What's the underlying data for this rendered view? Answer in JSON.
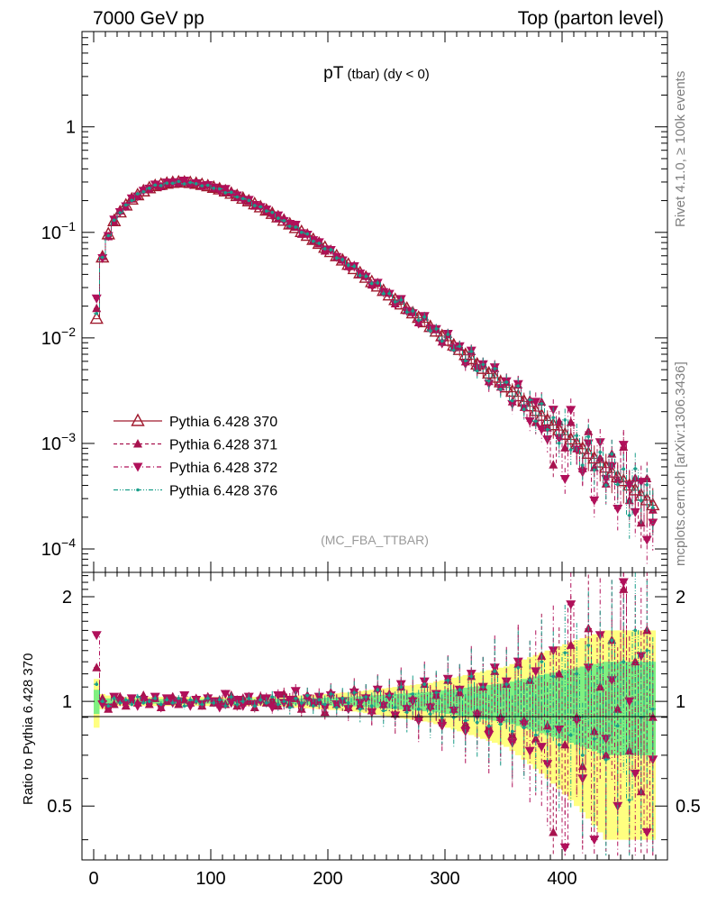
{
  "header": {
    "left": "7000 GeV pp",
    "right": "Top (parton level)"
  },
  "side_labels": {
    "rivet": "Rivet 4.1.0, ≥ 100k events",
    "mcplots": "mcplots.cern.ch [arXiv:1306.3436]"
  },
  "title_main": "pT",
  "title_sub": " (tbar) (dy < 0)",
  "analysis": "(MC_FBA_TTBAR)",
  "ratio_ylabel": "Ratio to Pythia 6.428 370",
  "colors": {
    "s370": "#a01a2e",
    "s371": "#a8124e",
    "s372": "#b0105a",
    "s376": "#1a9e8a",
    "band_yellow": "#ffff80",
    "band_green": "#80f080"
  },
  "chart_data": {
    "type": "line",
    "title": "pT (tbar) (dy < 0)",
    "xlabel": "",
    "ylabel": "",
    "xlim": [
      -10,
      490
    ],
    "main_ylim": [
      6e-05,
      8
    ],
    "main_yscale": "log",
    "ratio_ylim": [
      0.35,
      2.35
    ],
    "ratio_yscale": "log",
    "x_ticks": [
      "0",
      "100",
      "200",
      "300",
      "400"
    ],
    "main_y_ticks": [
      {
        "value": 1,
        "label": "1"
      },
      {
        "value": 0.1,
        "label": "10",
        "exp": "−1"
      },
      {
        "value": 0.01,
        "label": "10",
        "exp": "−2"
      },
      {
        "value": 0.001,
        "label": "10",
        "exp": "−3"
      },
      {
        "value": 0.0001,
        "label": "10",
        "exp": "−4"
      }
    ],
    "ratio_y_ticks": [
      {
        "value": 2,
        "label": "2"
      },
      {
        "value": 1,
        "label": "1"
      },
      {
        "value": 0.5,
        "label": "0.5"
      }
    ],
    "x": [
      2.5,
      7.5,
      12.5,
      17.5,
      22.5,
      27.5,
      32.5,
      37.5,
      42.5,
      47.5,
      52.5,
      57.5,
      62.5,
      67.5,
      72.5,
      77.5,
      82.5,
      87.5,
      92.5,
      97.5,
      102.5,
      107.5,
      112.5,
      117.5,
      122.5,
      127.5,
      132.5,
      137.5,
      142.5,
      147.5,
      152.5,
      157.5,
      162.5,
      167.5,
      172.5,
      177.5,
      182.5,
      187.5,
      192.5,
      197.5,
      202.5,
      207.5,
      212.5,
      217.5,
      222.5,
      227.5,
      232.5,
      237.5,
      242.5,
      247.5,
      252.5,
      257.5,
      262.5,
      267.5,
      272.5,
      277.5,
      282.5,
      287.5,
      292.5,
      297.5,
      302.5,
      307.5,
      312.5,
      317.5,
      322.5,
      327.5,
      332.5,
      337.5,
      342.5,
      347.5,
      352.5,
      357.5,
      362.5,
      367.5,
      372.5,
      377.5,
      382.5,
      387.5,
      392.5,
      397.5,
      402.5,
      407.5,
      412.5,
      417.5,
      422.5,
      427.5,
      432.5,
      437.5,
      442.5,
      447.5,
      452.5,
      457.5,
      462.5,
      467.5,
      472.5,
      477.5
    ],
    "series": [
      {
        "name": "Pythia 6.428 370",
        "key": "s370",
        "marker": "triangle-open",
        "dash": "solid",
        "values": [
          0.0152,
          0.058,
          0.096,
          0.128,
          0.155,
          0.18,
          0.205,
          0.225,
          0.245,
          0.262,
          0.275,
          0.283,
          0.29,
          0.295,
          0.298,
          0.297,
          0.294,
          0.289,
          0.282,
          0.274,
          0.265,
          0.256,
          0.245,
          0.233,
          0.221,
          0.209,
          0.197,
          0.185,
          0.173,
          0.161,
          0.15,
          0.139,
          0.129,
          0.119,
          0.11,
          0.101,
          0.093,
          0.085,
          0.078,
          0.0715,
          0.0652,
          0.0595,
          0.0542,
          0.0494,
          0.045,
          0.041,
          0.0372,
          0.0338,
          0.0307,
          0.0279,
          0.0253,
          0.0229,
          0.0208,
          0.0189,
          0.0171,
          0.0155,
          0.0141,
          0.0127,
          0.0115,
          0.0104,
          0.0094,
          0.0085,
          0.0077,
          0.0069,
          0.0063,
          0.0056,
          0.0051,
          0.0046,
          0.0042,
          0.0038,
          0.0034,
          0.0031,
          0.0028,
          0.0025,
          0.00225,
          0.00203,
          0.00183,
          0.00165,
          0.00149,
          0.00134,
          0.00121,
          0.00109,
          0.00099,
          0.00089,
          0.0008,
          0.00072,
          0.00066,
          0.00059,
          0.00053,
          0.00048,
          0.00044,
          0.0004,
          0.00036,
          0.00032,
          0.00029,
          0.00026
        ],
        "ratio": [
          1,
          1,
          1,
          1,
          1,
          1,
          1,
          1,
          1,
          1,
          1,
          1,
          1,
          1,
          1,
          1,
          1,
          1,
          1,
          1,
          1,
          1,
          1,
          1,
          1,
          1,
          1,
          1,
          1,
          1,
          1,
          1,
          1,
          1,
          1,
          1,
          1,
          1,
          1,
          1,
          1,
          1,
          1,
          1,
          1,
          1,
          1,
          1,
          1,
          1,
          1,
          1,
          1,
          1,
          1,
          1,
          1,
          1,
          1,
          1,
          1,
          1,
          1,
          1,
          1,
          1,
          1,
          1,
          1,
          1,
          1,
          1,
          1,
          1,
          1,
          1,
          1,
          1,
          1,
          1,
          1,
          1,
          1,
          1,
          1,
          1,
          1,
          1,
          1,
          1,
          1,
          1,
          1,
          1,
          1,
          1
        ]
      },
      {
        "name": "Pythia 6.428 371",
        "key": "s371",
        "marker": "triangle-up",
        "dash": "dashed",
        "ratio": [
          1.25,
          1.02,
          0.95,
          0.98,
          1.03,
          0.97,
          1.01,
          0.99,
          1.04,
          0.98,
          1.02,
          0.96,
          1.0,
          1.03,
          0.98,
          1.01,
          0.99,
          1.02,
          0.97,
          1.03,
          0.99,
          1.01,
          0.98,
          1.04,
          0.97,
          1.02,
          1.0,
          0.96,
          1.03,
          0.99,
          1.01,
          0.97,
          1.05,
          0.98,
          1.02,
          0.95,
          1.04,
          0.99,
          1.0,
          0.93,
          1.06,
          0.98,
          1.01,
          0.96,
          1.08,
          0.97,
          1.03,
          0.94,
          1.09,
          0.98,
          1.05,
          0.92,
          1.1,
          0.96,
          1.02,
          0.9,
          1.12,
          0.97,
          1.04,
          0.88,
          1.15,
          0.95,
          1.06,
          0.86,
          1.18,
          0.93,
          1.1,
          0.84,
          1.22,
          0.9,
          1.12,
          0.8,
          1.28,
          0.88,
          1.15,
          0.78,
          1.35,
          0.85,
          0.42,
          1.2,
          0.75,
          1.45,
          0.9,
          0.65,
          1.62,
          0.82,
          1.1,
          0.7,
          1.5,
          0.95,
          2.1,
          0.72,
          1.3,
          0.55,
          1.6,
          0.9
        ]
      },
      {
        "name": "Pythia 6.428 372",
        "key": "s372",
        "marker": "triangle-down",
        "dash": "dashdot",
        "ratio": [
          1.55,
          0.98,
          0.96,
          1.03,
          1.0,
          0.98,
          1.02,
          0.97,
          1.01,
          0.99,
          1.03,
          0.96,
          1.02,
          0.99,
          1.0,
          1.04,
          0.97,
          1.01,
          0.98,
          1.02,
          1.0,
          0.96,
          1.05,
          0.99,
          1.01,
          0.97,
          1.03,
          0.98,
          1.0,
          1.02,
          0.96,
          1.04,
          0.99,
          1.01,
          1.07,
          0.97,
          1.02,
          0.99,
          1.03,
          0.96,
          1.04,
          0.98,
          1.0,
          0.95,
          1.06,
          0.99,
          1.02,
          0.93,
          1.08,
          0.97,
          1.03,
          0.91,
          1.12,
          0.95,
          1.0,
          0.88,
          1.14,
          0.96,
          1.05,
          0.85,
          1.16,
          0.94,
          1.08,
          0.82,
          1.2,
          0.91,
          1.1,
          0.8,
          1.25,
          0.88,
          1.14,
          0.76,
          1.3,
          0.86,
          0.72,
          1.22,
          0.74,
          0.66,
          1.4,
          0.83,
          0.38,
          1.9,
          0.88,
          0.6,
          1.25,
          0.4,
          1.55,
          0.78,
          1.15,
          0.5,
          2.2,
          1.0,
          0.62,
          1.35,
          0.42,
          0.68
        ]
      },
      {
        "name": "Pythia 6.428 376",
        "key": "s376",
        "marker": "dot",
        "dash": "dashdotdot",
        "ratio": [
          1.12,
          1.0,
          0.97,
          1.02,
          0.99,
          1.01,
          0.98,
          1.03,
          0.99,
          1.0,
          1.02,
          0.98,
          1.01,
          0.99,
          1.02,
          0.97,
          1.01,
          1.0,
          0.98,
          1.02,
          0.99,
          1.01,
          0.97,
          1.03,
          0.98,
          1.0,
          1.02,
          0.97,
          1.01,
          0.99,
          1.03,
          0.98,
          1.0,
          0.96,
          1.02,
          0.99,
          1.04,
          0.97,
          1.01,
          0.98,
          1.05,
          0.96,
          1.02,
          0.99,
          1.06,
          0.95,
          1.03,
          0.97,
          1.08,
          0.94,
          1.04,
          0.96,
          1.1,
          0.93,
          1.05,
          0.95,
          1.12,
          0.92,
          1.06,
          0.9,
          1.15,
          0.9,
          1.08,
          0.88,
          1.18,
          0.87,
          1.1,
          0.85,
          1.22,
          0.86,
          1.12,
          0.82,
          1.25,
          0.84,
          1.15,
          0.8,
          1.3,
          0.82,
          1.18,
          0.75,
          1.38,
          0.8,
          1.2,
          0.7,
          1.45,
          0.78,
          1.25,
          0.68,
          1.5,
          0.85,
          1.3,
          0.52,
          1.6,
          0.9,
          1.4,
          0.95
        ]
      }
    ],
    "bands": {
      "yellow_halfwidth": [
        0.16,
        0.05,
        0.04,
        0.03,
        0.03,
        0.03,
        0.03,
        0.03,
        0.03,
        0.03,
        0.03,
        0.03,
        0.03,
        0.03,
        0.03,
        0.03,
        0.03,
        0.03,
        0.03,
        0.03,
        0.03,
        0.03,
        0.03,
        0.03,
        0.03,
        0.03,
        0.03,
        0.03,
        0.03,
        0.03,
        0.035,
        0.035,
        0.035,
        0.04,
        0.04,
        0.04,
        0.045,
        0.045,
        0.05,
        0.05,
        0.055,
        0.055,
        0.06,
        0.06,
        0.065,
        0.07,
        0.075,
        0.08,
        0.085,
        0.09,
        0.095,
        0.1,
        0.105,
        0.11,
        0.115,
        0.12,
        0.125,
        0.13,
        0.14,
        0.15,
        0.16,
        0.17,
        0.18,
        0.19,
        0.2,
        0.21,
        0.22,
        0.23,
        0.24,
        0.25,
        0.26,
        0.28,
        0.3,
        0.32,
        0.34,
        0.36,
        0.38,
        0.4,
        0.42,
        0.44,
        0.46,
        0.48,
        0.5,
        0.52,
        0.54,
        0.56,
        0.58,
        0.6,
        0.6,
        0.6,
        0.6,
        0.6,
        0.6,
        0.6,
        0.6,
        0.6
      ],
      "green_halfwidth": [
        0.08,
        0.025,
        0.02,
        0.015,
        0.015,
        0.015,
        0.015,
        0.015,
        0.015,
        0.015,
        0.015,
        0.015,
        0.015,
        0.015,
        0.015,
        0.015,
        0.015,
        0.015,
        0.015,
        0.015,
        0.015,
        0.015,
        0.015,
        0.015,
        0.015,
        0.015,
        0.015,
        0.015,
        0.015,
        0.015,
        0.018,
        0.018,
        0.018,
        0.02,
        0.02,
        0.02,
        0.023,
        0.023,
        0.025,
        0.025,
        0.028,
        0.028,
        0.03,
        0.03,
        0.033,
        0.035,
        0.038,
        0.04,
        0.043,
        0.045,
        0.048,
        0.05,
        0.053,
        0.055,
        0.058,
        0.06,
        0.063,
        0.065,
        0.07,
        0.075,
        0.08,
        0.085,
        0.09,
        0.095,
        0.1,
        0.105,
        0.11,
        0.115,
        0.12,
        0.125,
        0.13,
        0.14,
        0.15,
        0.16,
        0.17,
        0.18,
        0.19,
        0.2,
        0.21,
        0.22,
        0.23,
        0.24,
        0.25,
        0.26,
        0.27,
        0.28,
        0.29,
        0.3,
        0.3,
        0.3,
        0.3,
        0.3,
        0.3,
        0.3,
        0.3,
        0.3
      ]
    },
    "legend_placement": "lower-left"
  }
}
